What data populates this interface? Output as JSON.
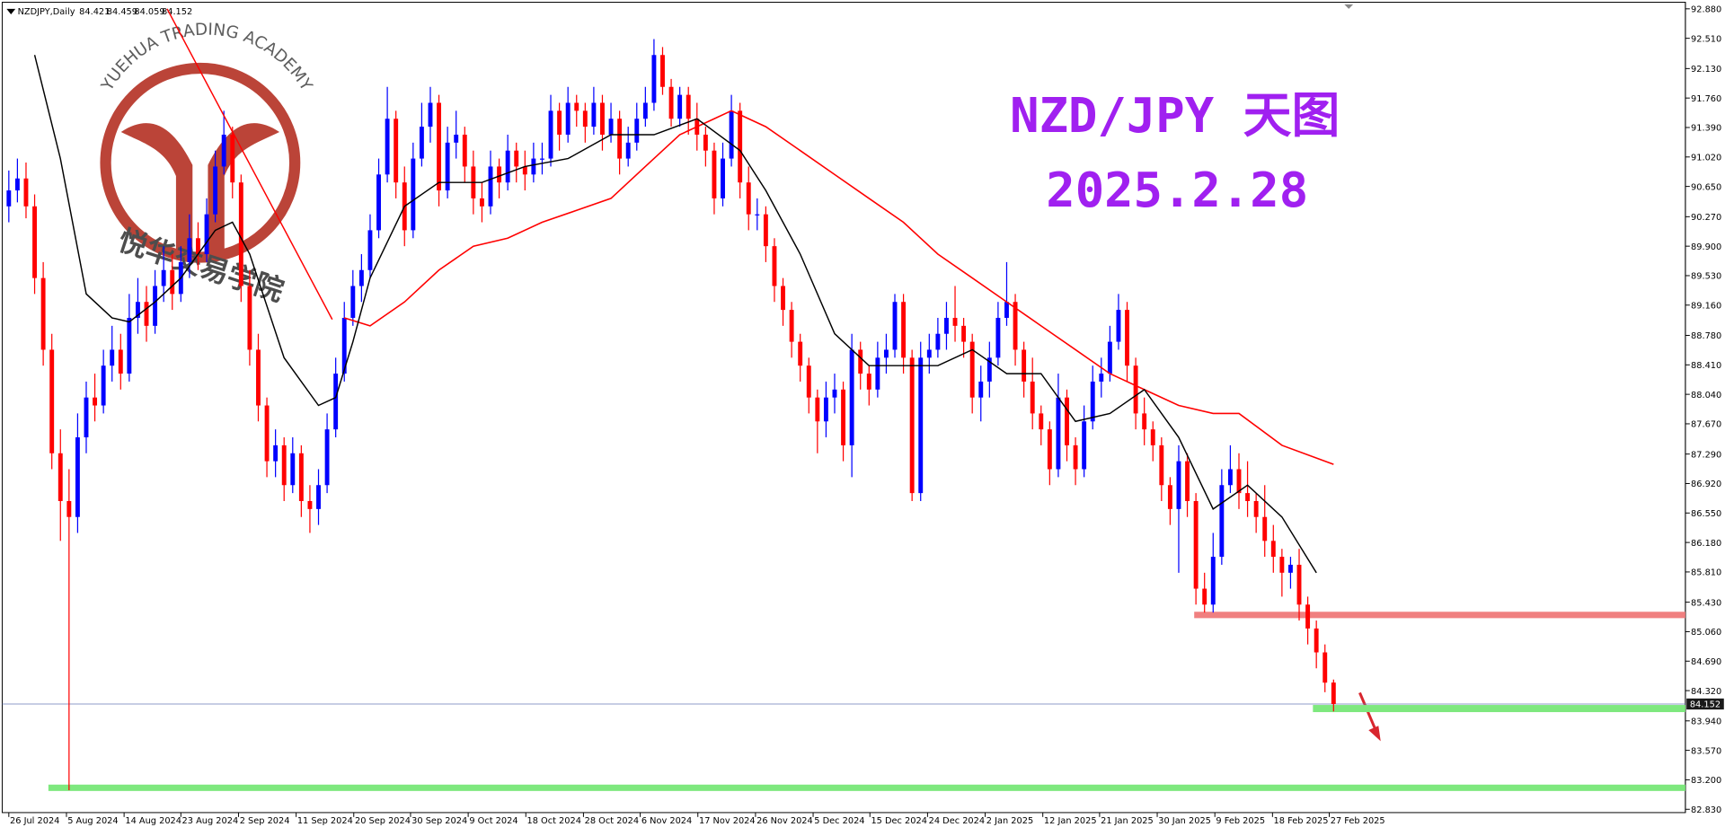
{
  "chart_data": {
    "type": "candlestick",
    "title": "NZD/JPY 天图",
    "subtitle": "2025.2.28",
    "symbol": "NZDJPY,Daily",
    "watermark_en": "YUEHUA TRADING ACADEMY",
    "watermark_cn": "悦华交易学院",
    "up_color": "#0000ff",
    "down_color": "#ff0000",
    "title_color": "#a020f0",
    "xlim": [
      -0.77,
      194.9
    ],
    "ylim": [
      82.83,
      92.88
    ],
    "yticks": [
      {
        "value": 92.88,
        "label": "92.880"
      },
      {
        "value": 92.51,
        "label": "92.510"
      },
      {
        "value": 92.13,
        "label": "92.130"
      },
      {
        "value": 91.76,
        "label": "91.760"
      },
      {
        "value": 91.39,
        "label": "91.390"
      },
      {
        "value": 91.02,
        "label": "91.020"
      },
      {
        "value": 90.65,
        "label": "90.650"
      },
      {
        "value": 90.27,
        "label": "90.270"
      },
      {
        "value": 89.9,
        "label": "89.900"
      },
      {
        "value": 89.53,
        "label": "89.530"
      },
      {
        "value": 89.16,
        "label": "89.160"
      },
      {
        "value": 88.78,
        "label": "88.780"
      },
      {
        "value": 88.41,
        "label": "88.410"
      },
      {
        "value": 88.04,
        "label": "88.040"
      },
      {
        "value": 87.67,
        "label": "87.670"
      },
      {
        "value": 87.29,
        "label": "87.290"
      },
      {
        "value": 86.92,
        "label": "86.920"
      },
      {
        "value": 86.55,
        "label": "86.550"
      },
      {
        "value": 86.18,
        "label": "86.180"
      },
      {
        "value": 85.81,
        "label": "85.810"
      },
      {
        "value": 85.43,
        "label": "85.430"
      },
      {
        "value": 85.06,
        "label": "85.060"
      },
      {
        "value": 84.69,
        "label": "84.690"
      },
      {
        "value": 84.32,
        "label": "84.320"
      },
      {
        "value": 83.94,
        "label": "83.940"
      },
      {
        "value": 83.57,
        "label": "83.570"
      },
      {
        "value": 83.2,
        "label": "83.200"
      },
      {
        "value": 82.83,
        "label": "82.830"
      }
    ],
    "xticks": [
      {
        "value": 0,
        "label": "26 Jul 2024"
      },
      {
        "value": 6.7,
        "label": "5 Aug 2024"
      },
      {
        "value": 13.4,
        "label": "14 Aug 2024"
      },
      {
        "value": 20,
        "label": "23 Aug 2024"
      },
      {
        "value": 26.7,
        "label": "2 Sep 2024"
      },
      {
        "value": 33.4,
        "label": "11 Sep 2024"
      },
      {
        "value": 40.1,
        "label": "20 Sep 2024"
      },
      {
        "value": 46.7,
        "label": "30 Sep 2024"
      },
      {
        "value": 53.4,
        "label": "9 Oct 2024"
      },
      {
        "value": 60.1,
        "label": "18 Oct 2024"
      },
      {
        "value": 66.8,
        "label": "28 Oct 2024"
      },
      {
        "value": 73.4,
        "label": "6 Nov 2024"
      },
      {
        "value": 80.1,
        "label": "17 Nov 2024"
      },
      {
        "value": 86.8,
        "label": "26 Nov 2024"
      },
      {
        "value": 93.5,
        "label": "5 Dec 2024"
      },
      {
        "value": 100.1,
        "label": "15 Dec 2024"
      },
      {
        "value": 106.8,
        "label": "24 Dec 2024"
      },
      {
        "value": 113.5,
        "label": "2 Jan 2025"
      },
      {
        "value": 120.2,
        "label": "12 Jan 2025"
      },
      {
        "value": 126.8,
        "label": "21 Jan 2025"
      },
      {
        "value": 133.5,
        "label": "30 Jan 2025"
      },
      {
        "value": 140.2,
        "label": "9 Feb 2025"
      },
      {
        "value": 146.9,
        "label": "18 Feb 2025"
      },
      {
        "value": 153.5,
        "label": "27 Feb 2025"
      }
    ],
    "candles": [
      [
        90.4,
        90.85,
        90.2,
        90.6
      ],
      [
        90.6,
        91.0,
        90.45,
        90.75
      ],
      [
        90.75,
        90.95,
        90.25,
        90.4
      ],
      [
        90.4,
        90.55,
        89.3,
        89.5
      ],
      [
        89.5,
        89.7,
        88.4,
        88.6
      ],
      [
        88.6,
        88.8,
        87.1,
        87.3
      ],
      [
        87.3,
        87.6,
        86.2,
        86.7
      ],
      [
        86.7,
        87.1,
        83.07,
        86.5
      ],
      [
        86.5,
        87.8,
        86.3,
        87.5
      ],
      [
        87.5,
        88.2,
        87.3,
        88.0
      ],
      [
        88.0,
        88.3,
        87.7,
        87.9
      ],
      [
        87.9,
        88.6,
        87.8,
        88.4
      ],
      [
        88.4,
        88.9,
        88.2,
        88.6
      ],
      [
        88.6,
        88.8,
        88.1,
        88.3
      ],
      [
        88.3,
        89.3,
        88.2,
        89.0
      ],
      [
        89.0,
        89.5,
        88.8,
        89.2
      ],
      [
        89.2,
        89.4,
        88.7,
        88.9
      ],
      [
        88.9,
        89.6,
        88.8,
        89.4
      ],
      [
        89.4,
        89.9,
        89.2,
        89.6
      ],
      [
        89.6,
        89.8,
        89.1,
        89.3
      ],
      [
        89.3,
        89.9,
        89.2,
        89.7
      ],
      [
        89.7,
        90.3,
        89.5,
        90.0
      ],
      [
        90.0,
        90.2,
        89.6,
        89.8
      ],
      [
        89.8,
        90.5,
        89.7,
        90.3
      ],
      [
        90.3,
        91.1,
        90.2,
        90.9
      ],
      [
        90.9,
        91.6,
        90.8,
        91.3
      ],
      [
        91.3,
        91.4,
        90.5,
        90.7
      ],
      [
        90.7,
        90.8,
        89.2,
        89.4
      ],
      [
        89.4,
        89.6,
        88.4,
        88.6
      ],
      [
        88.6,
        88.8,
        87.7,
        87.9
      ],
      [
        87.9,
        88.0,
        87.0,
        87.2
      ],
      [
        87.2,
        87.6,
        87.0,
        87.4
      ],
      [
        87.4,
        87.5,
        86.7,
        86.9
      ],
      [
        86.9,
        87.5,
        86.8,
        87.3
      ],
      [
        87.3,
        87.4,
        86.5,
        86.7
      ],
      [
        86.7,
        86.9,
        86.3,
        86.6
      ],
      [
        86.6,
        87.1,
        86.4,
        86.9
      ],
      [
        86.9,
        87.8,
        86.8,
        87.6
      ],
      [
        87.6,
        88.5,
        87.5,
        88.3
      ],
      [
        88.3,
        89.2,
        88.2,
        89.0
      ],
      [
        89.0,
        89.6,
        88.9,
        89.4
      ],
      [
        89.4,
        89.8,
        89.2,
        89.6
      ],
      [
        89.6,
        90.3,
        89.5,
        90.1
      ],
      [
        90.1,
        91.0,
        90.0,
        90.8
      ],
      [
        90.8,
        91.9,
        90.7,
        91.5
      ],
      [
        91.5,
        91.6,
        90.5,
        90.7
      ],
      [
        90.7,
        90.9,
        89.9,
        90.1
      ],
      [
        90.1,
        91.2,
        90.0,
        91.0
      ],
      [
        91.0,
        91.7,
        90.9,
        91.4
      ],
      [
        91.4,
        91.9,
        91.2,
        91.7
      ],
      [
        91.7,
        91.8,
        90.4,
        90.6
      ],
      [
        90.6,
        91.4,
        90.5,
        91.2
      ],
      [
        91.2,
        91.6,
        91.0,
        91.3
      ],
      [
        91.3,
        91.4,
        90.7,
        90.9
      ],
      [
        90.9,
        91.1,
        90.3,
        90.5
      ],
      [
        90.5,
        90.7,
        90.2,
        90.4
      ],
      [
        90.4,
        91.1,
        90.3,
        90.9
      ],
      [
        90.9,
        91.0,
        90.5,
        90.7
      ],
      [
        90.7,
        91.3,
        90.6,
        91.1
      ],
      [
        91.1,
        91.2,
        90.7,
        90.9
      ],
      [
        90.9,
        91.1,
        90.6,
        90.8
      ],
      [
        90.8,
        91.2,
        90.7,
        91.0
      ],
      [
        91.0,
        91.2,
        90.8,
        91.0
      ],
      [
        91.0,
        91.8,
        90.9,
        91.6
      ],
      [
        91.6,
        91.7,
        91.1,
        91.3
      ],
      [
        91.3,
        91.9,
        91.2,
        91.7
      ],
      [
        91.7,
        91.8,
        91.4,
        91.6
      ],
      [
        91.6,
        91.7,
        91.2,
        91.4
      ],
      [
        91.4,
        91.9,
        91.3,
        91.7
      ],
      [
        91.7,
        91.8,
        91.1,
        91.3
      ],
      [
        91.3,
        91.7,
        91.2,
        91.5
      ],
      [
        91.5,
        91.6,
        90.8,
        91.0
      ],
      [
        91.0,
        91.4,
        90.9,
        91.2
      ],
      [
        91.2,
        91.7,
        91.1,
        91.5
      ],
      [
        91.5,
        91.9,
        91.4,
        91.7
      ],
      [
        91.7,
        92.5,
        91.6,
        92.3
      ],
      [
        92.3,
        92.4,
        91.8,
        91.9
      ],
      [
        91.9,
        92.0,
        91.4,
        91.5
      ],
      [
        91.5,
        91.9,
        91.4,
        91.8
      ],
      [
        91.8,
        91.9,
        91.3,
        91.5
      ],
      [
        91.5,
        91.7,
        91.1,
        91.3
      ],
      [
        91.3,
        91.4,
        90.9,
        91.1
      ],
      [
        91.1,
        91.2,
        90.3,
        90.5
      ],
      [
        90.5,
        91.2,
        90.4,
        91.0
      ],
      [
        91.0,
        91.8,
        90.9,
        91.6
      ],
      [
        91.6,
        91.7,
        90.5,
        90.7
      ],
      [
        90.7,
        90.9,
        90.1,
        90.3
      ],
      [
        90.3,
        90.5,
        90.1,
        90.3
      ],
      [
        90.3,
        90.4,
        89.7,
        89.9
      ],
      [
        89.9,
        90.0,
        89.2,
        89.4
      ],
      [
        89.4,
        89.5,
        88.9,
        89.1
      ],
      [
        89.1,
        89.2,
        88.5,
        88.7
      ],
      [
        88.7,
        88.8,
        88.2,
        88.4
      ],
      [
        88.4,
        88.5,
        87.8,
        88.0
      ],
      [
        88.0,
        88.1,
        87.3,
        87.7
      ],
      [
        87.7,
        88.2,
        87.5,
        88.0
      ],
      [
        88.0,
        88.3,
        87.8,
        88.1
      ],
      [
        88.1,
        88.2,
        87.2,
        87.4
      ],
      [
        87.4,
        88.8,
        87.0,
        88.6
      ],
      [
        88.6,
        88.7,
        88.1,
        88.3
      ],
      [
        88.3,
        88.4,
        87.9,
        88.1
      ],
      [
        88.1,
        88.7,
        88.0,
        88.5
      ],
      [
        88.5,
        88.8,
        88.3,
        88.6
      ],
      [
        88.6,
        89.3,
        88.5,
        89.2
      ],
      [
        89.2,
        89.3,
        88.3,
        88.5
      ],
      [
        88.5,
        88.6,
        86.7,
        86.8
      ],
      [
        86.8,
        88.7,
        86.7,
        88.5
      ],
      [
        88.5,
        88.8,
        88.3,
        88.6
      ],
      [
        88.6,
        89.0,
        88.5,
        88.8
      ],
      [
        88.8,
        89.2,
        88.6,
        89.0
      ],
      [
        89.0,
        89.4,
        88.7,
        88.9
      ],
      [
        88.9,
        89.0,
        88.5,
        88.7
      ],
      [
        88.7,
        88.8,
        87.8,
        88.0
      ],
      [
        88.0,
        88.4,
        87.7,
        88.2
      ],
      [
        88.2,
        88.7,
        88.0,
        88.5
      ],
      [
        88.5,
        89.2,
        88.4,
        89.0
      ],
      [
        89.0,
        89.7,
        88.9,
        89.2
      ],
      [
        89.2,
        89.3,
        88.4,
        88.6
      ],
      [
        88.6,
        88.7,
        88.0,
        88.2
      ],
      [
        88.2,
        88.5,
        87.6,
        87.8
      ],
      [
        87.8,
        87.9,
        87.4,
        87.6
      ],
      [
        87.6,
        87.7,
        86.9,
        87.1
      ],
      [
        87.1,
        88.3,
        87.0,
        88.0
      ],
      [
        88.0,
        88.1,
        87.2,
        87.4
      ],
      [
        87.4,
        87.5,
        86.9,
        87.1
      ],
      [
        87.1,
        87.9,
        87.0,
        87.7
      ],
      [
        87.7,
        88.4,
        87.6,
        88.2
      ],
      [
        88.2,
        88.5,
        88.0,
        88.3
      ],
      [
        88.3,
        88.9,
        88.2,
        88.7
      ],
      [
        88.7,
        89.3,
        88.6,
        89.1
      ],
      [
        89.1,
        89.2,
        88.2,
        88.4
      ],
      [
        88.4,
        88.5,
        87.6,
        87.8
      ],
      [
        87.8,
        88.0,
        87.4,
        87.6
      ],
      [
        87.6,
        87.7,
        87.2,
        87.4
      ],
      [
        87.4,
        87.5,
        86.7,
        86.9
      ],
      [
        86.9,
        87.0,
        86.4,
        86.6
      ],
      [
        86.6,
        87.4,
        85.8,
        87.2
      ],
      [
        87.2,
        87.3,
        86.5,
        86.7
      ],
      [
        86.7,
        86.8,
        85.4,
        85.6
      ],
      [
        85.6,
        85.8,
        85.3,
        85.4
      ],
      [
        85.4,
        86.3,
        85.3,
        86.0
      ],
      [
        86.0,
        87.1,
        85.9,
        86.9
      ],
      [
        86.9,
        87.4,
        86.8,
        87.1
      ],
      [
        87.1,
        87.3,
        86.6,
        86.8
      ],
      [
        86.8,
        87.2,
        86.5,
        86.7
      ],
      [
        86.7,
        86.8,
        86.3,
        86.5
      ],
      [
        86.5,
        86.9,
        86.0,
        86.2
      ],
      [
        86.2,
        86.4,
        85.8,
        86.0
      ],
      [
        86.0,
        86.1,
        85.5,
        85.8
      ],
      [
        85.8,
        86.0,
        85.6,
        85.9
      ],
      [
        85.9,
        86.1,
        85.2,
        85.4
      ],
      [
        85.4,
        85.5,
        84.9,
        85.1
      ],
      [
        85.1,
        85.2,
        84.6,
        84.8
      ],
      [
        84.8,
        84.9,
        84.3,
        84.42
      ],
      [
        84.421,
        84.459,
        84.059,
        84.152
      ]
    ],
    "fast_ma": {
      "color": "#000000",
      "x": [
        3,
        6,
        9,
        12,
        14,
        17,
        20,
        24,
        26,
        28,
        32,
        36,
        38,
        40,
        42,
        46,
        50,
        55,
        60,
        65,
        70,
        75,
        80,
        85,
        88,
        92,
        96,
        100,
        104,
        108,
        112,
        116,
        120,
        124,
        128,
        132,
        136,
        140,
        144,
        148,
        152
      ],
      "values": [
        92.3,
        91.0,
        89.3,
        89.0,
        88.95,
        89.2,
        89.5,
        90.1,
        90.2,
        89.8,
        88.5,
        87.9,
        88.0,
        88.7,
        89.5,
        90.4,
        90.7,
        90.7,
        90.9,
        91.0,
        91.3,
        91.3,
        91.5,
        91.1,
        90.6,
        89.8,
        88.8,
        88.4,
        88.4,
        88.4,
        88.6,
        88.3,
        88.3,
        87.7,
        87.8,
        88.1,
        87.5,
        86.6,
        86.9,
        86.5,
        85.8
      ]
    },
    "slow_ma": {
      "color": "#ff0000",
      "x": [
        39,
        42,
        46,
        50,
        54,
        58,
        62,
        66,
        70,
        74,
        78,
        82,
        84,
        88,
        92,
        96,
        100,
        104,
        108,
        112,
        116,
        120,
        124,
        128,
        132,
        136,
        140,
        143,
        148,
        154
      ],
      "values": [
        89.0,
        88.9,
        89.2,
        89.6,
        89.9,
        90.0,
        90.2,
        90.35,
        90.5,
        90.9,
        91.3,
        91.5,
        91.6,
        91.4,
        91.1,
        90.8,
        90.5,
        90.2,
        89.8,
        89.5,
        89.2,
        88.9,
        88.6,
        88.3,
        88.1,
        87.9,
        87.8,
        87.8,
        87.4,
        87.16
      ]
    },
    "trendline": {
      "color": "#ff0000",
      "x": [
        18.4,
        37.6
      ],
      "values": [
        92.88,
        88.98
      ]
    },
    "zones": [
      {
        "color": "#f08080",
        "x": 137.8,
        "values": [
          85.23,
          85.31
        ]
      },
      {
        "color": "#7ee87e",
        "x": 151.6,
        "values": [
          84.05,
          84.14
        ]
      },
      {
        "color": "#7ee87e",
        "x": 4.6,
        "values": [
          83.06,
          83.14
        ]
      }
    ]
  }
}
